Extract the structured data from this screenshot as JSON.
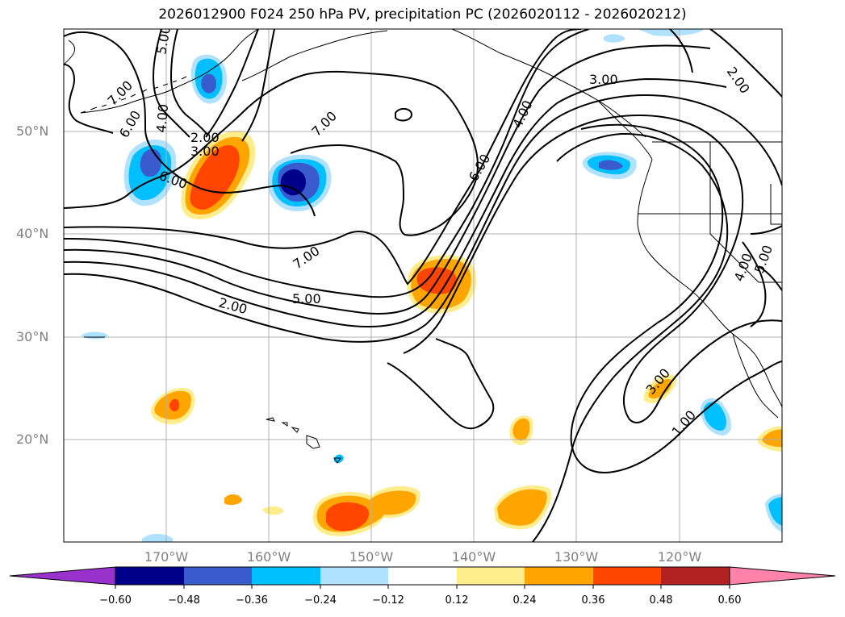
{
  "title": "2026012900 F024 250 hPa PV, precipitation PC (2026020112 - 2026020212)",
  "map": {
    "lat_labels": [
      "50°N",
      "40°N",
      "30°N",
      "20°N"
    ],
    "lon_labels": [
      "170°W",
      "160°W",
      "150°W",
      "140°W",
      "130°W",
      "120°W"
    ],
    "contour_labels": [
      "7.00",
      "6.00",
      "5.00",
      "4.00",
      "2.00",
      "3.00",
      "6.00",
      "7.00",
      "6.00",
      "4.00",
      "3.00",
      "2.00",
      "7.00",
      "5.00",
      "2.00",
      "4.00",
      "5.00",
      "3.00",
      "1.00"
    ],
    "colors": {
      "coast": "#000000",
      "contour": "#000000",
      "grid": "#b0b0b0"
    }
  },
  "colorbar": {
    "colors": [
      "#9932cc",
      "#00008b",
      "#3a5bcd",
      "#00bfff",
      "#b0e2ff",
      "#ffffff",
      "#ffec8b",
      "#ffa500",
      "#ff4500",
      "#b22222",
      "#ff82ab"
    ],
    "ticks": [
      "−0.60",
      "−0.48",
      "−0.36",
      "−0.24",
      "−0.12",
      "0.12",
      "0.24",
      "0.36",
      "0.48",
      "0.60"
    ]
  }
}
